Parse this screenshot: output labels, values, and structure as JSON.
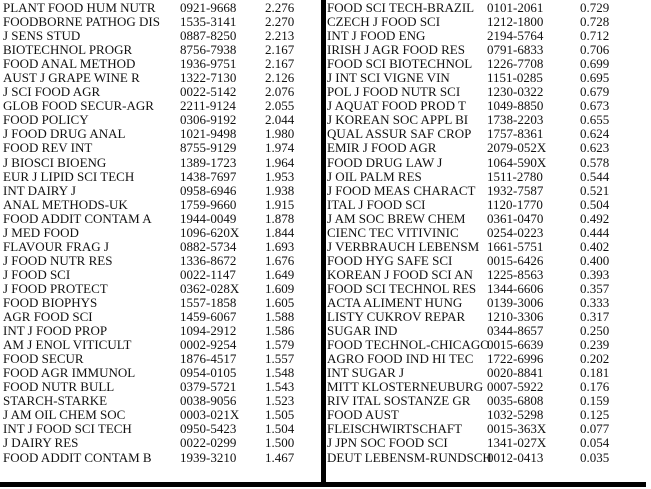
{
  "left_table": [
    [
      "PLANT FOOD HUM NUTR",
      "0921-9668",
      "2.276"
    ],
    [
      "FOODBORNE PATHOG DIS",
      "1535-3141",
      "2.270"
    ],
    [
      "J SENS STUD",
      "0887-8250",
      "2.213"
    ],
    [
      "BIOTECHNOL PROGR",
      "8756-7938",
      "2.167"
    ],
    [
      "FOOD ANAL METHOD",
      "1936-9751",
      "2.167"
    ],
    [
      "AUST J GRAPE WINE R",
      "1322-7130",
      "2.126"
    ],
    [
      "J SCI FOOD AGR",
      "0022-5142",
      "2.076"
    ],
    [
      "GLOB FOOD SECUR-AGR",
      "2211-9124",
      "2.055"
    ],
    [
      "FOOD POLICY",
      "0306-9192",
      "2.044"
    ],
    [
      "J FOOD DRUG ANAL",
      "1021-9498",
      "1.980"
    ],
    [
      "FOOD REV INT",
      "8755-9129",
      "1.974"
    ],
    [
      "J BIOSCI BIOENG",
      "1389-1723",
      "1.964"
    ],
    [
      "EUR J LIPID SCI TECH",
      "1438-7697",
      "1.953"
    ],
    [
      "INT DAIRY J",
      "0958-6946",
      "1.938"
    ],
    [
      "ANAL METHODS-UK",
      "1759-9660",
      "1.915"
    ],
    [
      "FOOD ADDIT CONTAM A",
      "1944-0049",
      "1.878"
    ],
    [
      "J MED FOOD",
      "1096-620X",
      "1.844"
    ],
    [
      "FLAVOUR FRAG J",
      "0882-5734",
      "1.693"
    ],
    [
      "J FOOD NUTR RES",
      "1336-8672",
      "1.676"
    ],
    [
      "J FOOD SCI",
      "0022-1147",
      "1.649"
    ],
    [
      "J FOOD PROTECT",
      "0362-028X",
      "1.609"
    ],
    [
      "FOOD BIOPHYS",
      "1557-1858",
      "1.605"
    ],
    [
      "AGR FOOD SCI",
      "1459-6067",
      "1.588"
    ],
    [
      "INT J FOOD PROP",
      "1094-2912",
      "1.586"
    ],
    [
      "AM J ENOL VITICULT",
      "0002-9254",
      "1.579"
    ],
    [
      "FOOD SECUR",
      "1876-4517",
      "1.557"
    ],
    [
      "FOOD AGR IMMUNOL",
      "0954-0105",
      "1.548"
    ],
    [
      "FOOD NUTR BULL",
      "0379-5721",
      "1.543"
    ],
    [
      "STARCH-STARKE",
      "0038-9056",
      "1.523"
    ],
    [
      "J AM OIL CHEM SOC",
      "0003-021X",
      "1.505"
    ],
    [
      "INT J FOOD SCI TECH",
      "0950-5423",
      "1.504"
    ],
    [
      "J DAIRY RES",
      "0022-0299",
      "1.500"
    ],
    [
      "FOOD ADDIT CONTAM B",
      "1939-3210",
      "1.467"
    ]
  ],
  "right_table": [
    [
      "FOOD SCI TECH-BRAZIL",
      "0101-2061",
      "0.729"
    ],
    [
      "CZECH J FOOD SCI",
      "1212-1800",
      "0.728"
    ],
    [
      "INT J FOOD ENG",
      "2194-5764",
      "0.712"
    ],
    [
      "IRISH J AGR FOOD RES",
      "0791-6833",
      "0.706"
    ],
    [
      "FOOD SCI BIOTECHNOL",
      "1226-7708",
      "0.699"
    ],
    [
      "J INT SCI VIGNE VIN",
      "1151-0285",
      "0.695"
    ],
    [
      "POL J FOOD NUTR SCI",
      "1230-0322",
      "0.679"
    ],
    [
      "J AQUAT FOOD PROD T",
      "1049-8850",
      "0.673"
    ],
    [
      "J KOREAN SOC APPL BI",
      "1738-2203",
      "0.655"
    ],
    [
      "QUAL ASSUR SAF CROP",
      "1757-8361",
      "0.624"
    ],
    [
      "EMIR J FOOD AGR",
      "2079-052X",
      "0.623"
    ],
    [
      "FOOD DRUG LAW J",
      "1064-590X",
      "0.578"
    ],
    [
      "J OIL PALM RES",
      "1511-2780",
      "0.544"
    ],
    [
      "J FOOD MEAS CHARACT",
      "1932-7587",
      "0.521"
    ],
    [
      "ITAL J FOOD SCI",
      "1120-1770",
      "0.504"
    ],
    [
      "J AM SOC BREW CHEM",
      "0361-0470",
      "0.492"
    ],
    [
      "CIENC TEC VITIVINIC",
      "0254-0223",
      "0.444"
    ],
    [
      "J VERBRAUCH LEBENSM",
      "1661-5751",
      "0.402"
    ],
    [
      "FOOD HYG SAFE SCI",
      "0015-6426",
      "0.400"
    ],
    [
      "KOREAN J FOOD SCI AN",
      "1225-8563",
      "0.393"
    ],
    [
      "FOOD SCI TECHNOL RES",
      "1344-6606",
      "0.357"
    ],
    [
      "ACTA ALIMENT HUNG",
      "0139-3006",
      "0.333"
    ],
    [
      "LISTY CUKROV REPAR",
      "1210-3306",
      "0.317"
    ],
    [
      "SUGAR IND",
      "0344-8657",
      "0.250"
    ],
    [
      "FOOD TECHNOL-CHICAGO",
      "0015-6639",
      "0.239"
    ],
    [
      "AGRO FOOD IND HI TEC",
      "1722-6996",
      "0.202"
    ],
    [
      "INT SUGAR J",
      "0020-8841",
      "0.181"
    ],
    [
      "MITT KLOSTERNEUBURG",
      "0007-5922",
      "0.176"
    ],
    [
      "RIV ITAL SOSTANZE GR",
      "0035-6808",
      "0.159"
    ],
    [
      "FOOD AUST",
      "1032-5298",
      "0.125"
    ],
    [
      "FLEISCHWIRTSCHAFT",
      "0015-363X",
      "0.077"
    ],
    [
      "J JPN SOC FOOD SCI",
      "1341-027X",
      "0.054"
    ],
    [
      "DEUT LEBENSM-RUNDSCH",
      "0012-0413",
      "0.035"
    ]
  ]
}
